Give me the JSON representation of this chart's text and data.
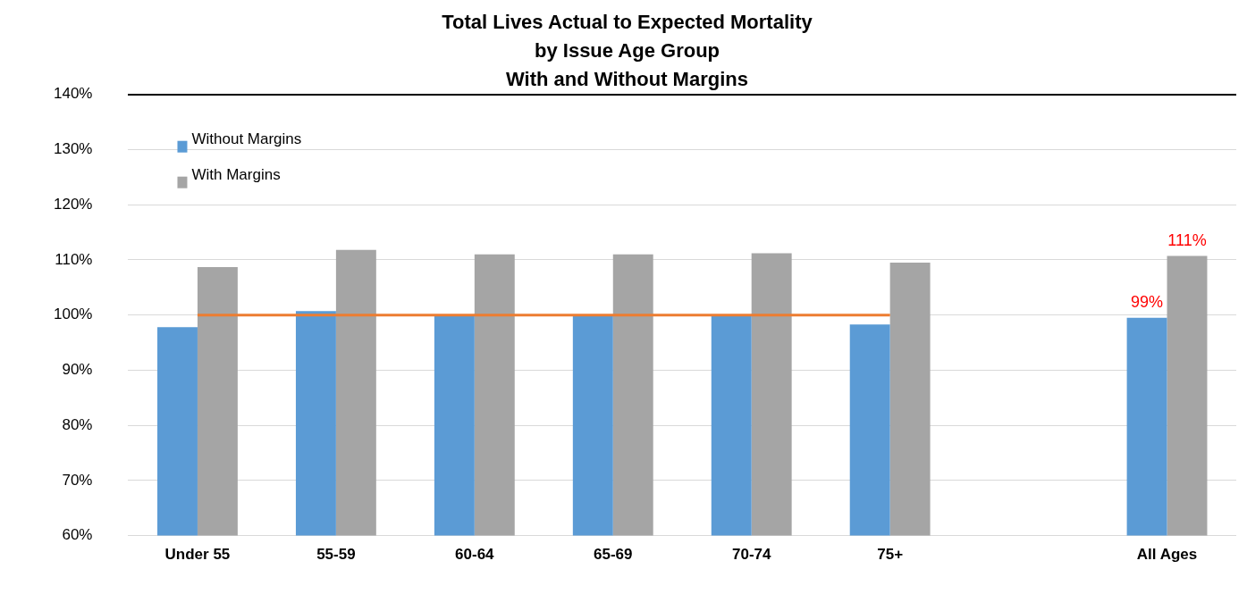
{
  "chart_data": {
    "type": "bar",
    "title": "Total Lives Actual to Expected Mortality\nby Issue Age Group\nWith and Without Margins",
    "categories": [
      "Under 55",
      "55-59",
      "60-64",
      "65-69",
      "70-74",
      "75+",
      null,
      "All Ages"
    ],
    "series": [
      {
        "name": "Without Margins",
        "color": "#5b9bd5",
        "values": [
          97.8,
          100.7,
          100,
          100,
          100,
          98.3,
          null,
          99.5
        ],
        "value_labels": [
          null,
          null,
          null,
          null,
          null,
          null,
          null,
          "99%"
        ]
      },
      {
        "name": "With Margins",
        "color": "#a5a5a5",
        "values": [
          108.7,
          111.8,
          111,
          111,
          111.2,
          109.5,
          null,
          110.7
        ],
        "value_labels": [
          null,
          null,
          null,
          null,
          null,
          null,
          null,
          "111%"
        ]
      },
      {
        "type": "line",
        "color": "#ed7d31",
        "values": [
          100,
          100,
          100,
          100,
          100,
          100,
          null,
          null
        ],
        "marker": "none"
      }
    ],
    "ylim": [
      60,
      140
    ],
    "yticks": [
      {
        "value": 60,
        "label": "60%"
      },
      {
        "value": 70,
        "label": "70%"
      },
      {
        "value": 80,
        "label": "80%"
      },
      {
        "value": 90,
        "label": "90%"
      },
      {
        "value": 100,
        "label": "100%"
      },
      {
        "value": 110,
        "label": "110%"
      },
      {
        "value": 120,
        "label": "120%"
      },
      {
        "value": 130,
        "label": "130%"
      },
      {
        "value": 140,
        "label": "140%"
      }
    ],
    "grid": "y",
    "legend": "top left"
  }
}
